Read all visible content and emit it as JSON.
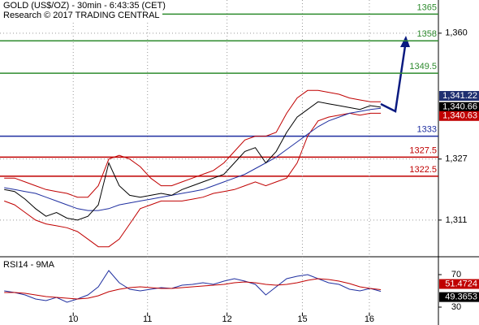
{
  "chart_data": [
    {
      "type": "line",
      "title": "GOLD (US$/OZ) - 30min - 6:43:35 (CET)",
      "subtitle": "Research © 2017 TRADING CENTRAL",
      "x": [
        0,
        1,
        2,
        3,
        4,
        5,
        6,
        7,
        8,
        9,
        10,
        11,
        12,
        13,
        14,
        15,
        16,
        17,
        18,
        19,
        20,
        21,
        22,
        23,
        24,
        25,
        26,
        27,
        28,
        29,
        30,
        31,
        32,
        33,
        34,
        35,
        36
      ],
      "xlim": [
        -0.4,
        41.5
      ],
      "ylim": [
        1301.6,
        1368.7
      ],
      "yticks": [
        {
          "value": 1360,
          "label": "1,360"
        },
        {
          "value": 1327,
          "label": "1,327"
        },
        {
          "value": 1311,
          "label": "1,311"
        }
      ],
      "grid": true,
      "series": [
        {
          "color": "#c00000",
          "values": [
            1322,
            1322,
            1321,
            1320,
            1319,
            1318.5,
            1318,
            1317,
            1317,
            1320,
            1327,
            1328,
            1327,
            1325,
            1322,
            1320,
            1320,
            1321,
            1322,
            1323,
            1324,
            1326,
            1329,
            1332,
            1333,
            1333,
            1334,
            1339,
            1343,
            1345,
            1345,
            1344.5,
            1344,
            1343,
            1342.5,
            1342,
            1342
          ]
        },
        {
          "color": "#c00000",
          "values": [
            1316,
            1315,
            1313,
            1311,
            1310,
            1309.5,
            1309,
            1308,
            1306,
            1304,
            1304,
            1306,
            1310,
            1314,
            1315,
            1316,
            1316,
            1316,
            1316.5,
            1317,
            1318,
            1318.5,
            1319,
            1320,
            1321,
            1320,
            1321,
            1322,
            1326,
            1333,
            1337,
            1338,
            1338.5,
            1339,
            1338.5,
            1339,
            1339
          ]
        },
        {
          "color": "#1f2fa0",
          "values": [
            1319.5,
            1319,
            1318.5,
            1318,
            1317,
            1316,
            1315,
            1314,
            1313.5,
            1313.5,
            1314,
            1315,
            1315.5,
            1316,
            1316.5,
            1317,
            1317.5,
            1318,
            1318.5,
            1319,
            1320,
            1321,
            1322,
            1323,
            1324.5,
            1326,
            1327.5,
            1329.5,
            1331.5,
            1333.5,
            1335.5,
            1337,
            1338,
            1339,
            1339.5,
            1340,
            1340.3
          ]
        },
        {
          "color": "#000000",
          "values": [
            1319,
            1318.5,
            1316.5,
            1314,
            1312,
            1313,
            1311.5,
            1311,
            1312,
            1315,
            1326,
            1320,
            1317.5,
            1317,
            1317.5,
            1318,
            1317.5,
            1319,
            1320,
            1321,
            1322,
            1323,
            1326,
            1329,
            1330,
            1326,
            1329,
            1334,
            1338,
            1340,
            1342,
            1341.5,
            1341,
            1340.5,
            1340,
            1341,
            1340.6
          ]
        }
      ],
      "levels": [
        {
          "value": 1365,
          "color": "#2e8b2e"
        },
        {
          "value": 1358,
          "color": "#2e8b2e"
        },
        {
          "value": 1349.5,
          "color": "#2e8b2e"
        },
        {
          "value": 1333,
          "color": "#1f2fa0"
        },
        {
          "value": 1327.5,
          "color": "#c00000"
        },
        {
          "value": 1322.5,
          "color": "#c00000"
        }
      ],
      "price_labels": [
        {
          "value": 1341.22,
          "label": "1,341.22",
          "color": "#1f2f70"
        },
        {
          "value": 1340.66,
          "label": "1,340.66",
          "color": "#000000"
        },
        {
          "value": 1340.63,
          "label": "1,340.63",
          "color": "#c00000"
        }
      ]
    },
    {
      "type": "line",
      "title": "RSI14 - 9MA",
      "x": [
        0,
        1,
        2,
        3,
        4,
        5,
        6,
        7,
        8,
        9,
        10,
        11,
        12,
        13,
        14,
        15,
        16,
        17,
        18,
        19,
        20,
        21,
        22,
        23,
        24,
        25,
        26,
        27,
        28,
        29,
        30,
        31,
        32,
        33,
        34,
        35,
        36
      ],
      "xlim": [
        -0.4,
        41.5
      ],
      "xticks": [
        {
          "value": 6.6,
          "label": "10"
        },
        {
          "value": 13.7,
          "label": "11"
        },
        {
          "value": 21.3,
          "label": "12"
        },
        {
          "value": 28.5,
          "label": "15"
        },
        {
          "value": 34.9,
          "label": "16"
        }
      ],
      "ylim": [
        23,
        90
      ],
      "yticks": [
        70,
        30
      ],
      "series": [
        {
          "color": "#1f2fa0",
          "values": [
            50,
            48,
            45,
            40,
            38,
            42,
            36,
            40,
            45,
            55,
            75,
            60,
            52,
            50,
            52,
            54,
            53,
            57,
            58,
            60,
            58,
            62,
            65,
            62,
            58,
            45,
            55,
            65,
            68,
            70,
            65,
            60,
            58,
            52,
            50,
            53,
            49.3653
          ]
        },
        {
          "color": "#c00000",
          "values": [
            48,
            48,
            47,
            45,
            43,
            42,
            41,
            40,
            41,
            44,
            49,
            52,
            54,
            55,
            54,
            53,
            53,
            54,
            55,
            56,
            57,
            58,
            60,
            61,
            60,
            58,
            57,
            58,
            60,
            63,
            65,
            64,
            62,
            59,
            55,
            53,
            51.4724
          ]
        }
      ]
    }
  ]
}
